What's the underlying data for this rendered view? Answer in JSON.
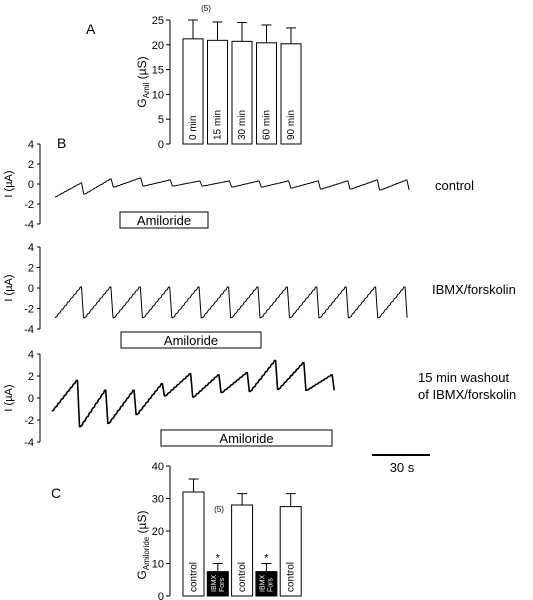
{
  "panel_labels": {
    "a": "A",
    "b": "B",
    "c": "C"
  },
  "chart_data": [
    {
      "type": "bar",
      "panel": "A",
      "ylabel": "G_Amil (µS)",
      "ylabel_main": "G",
      "ylabel_sub": "Amil",
      "ylabel_unit": " (µS)",
      "ylim": [
        0,
        25
      ],
      "yticks": [
        0,
        5,
        10,
        15,
        20,
        25
      ],
      "n_label": "(5)",
      "categories": [
        "0 min",
        "15 min",
        "30 min",
        "60 min",
        "90 min"
      ],
      "values": [
        21.2,
        20.9,
        20.7,
        20.4,
        20.2
      ],
      "errors": [
        3.8,
        3.7,
        3.8,
        3.6,
        3.2
      ],
      "fill": [
        "#ffffff",
        "#ffffff",
        "#ffffff",
        "#ffffff",
        "#ffffff"
      ]
    },
    {
      "type": "line",
      "panel": "B",
      "x_scalebar_label": "30 s",
      "traces": [
        {
          "label": "control",
          "ylabel": "I (µA)",
          "ylim": [
            -4,
            4
          ],
          "yticks": [
            -4,
            -2,
            0,
            2,
            4
          ],
          "bar_label": "Amiloride",
          "n_cycles": 12,
          "amplitude": [
            1.4,
            1.5,
            0.9,
            0.6,
            0.5,
            0.5,
            0.6,
            0.6,
            0.7,
            0.8,
            0.9,
            1.0
          ],
          "baseline": [
            -1.3,
            -1.0,
            -0.3,
            -0.2,
            -0.2,
            -0.2,
            -0.3,
            -0.3,
            -0.4,
            -0.5,
            -0.5,
            -0.6
          ]
        },
        {
          "label": "IBMX/forskolin",
          "ylabel": "I (µA)",
          "ylim": [
            -4,
            4
          ],
          "yticks": [
            -4,
            -2,
            0,
            2,
            4
          ],
          "bar_label": "Amiloride",
          "n_cycles": 12,
          "amplitude": [
            3.0,
            3.0,
            3.0,
            3.0,
            3.0,
            3.0,
            3.0,
            3.0,
            3.0,
            3.0,
            3.0,
            3.0
          ],
          "baseline": [
            -2.9,
            -2.9,
            -2.9,
            -2.9,
            -2.9,
            -2.9,
            -2.9,
            -2.9,
            -2.9,
            -2.9,
            -2.9,
            -2.9
          ]
        },
        {
          "label": "15 min washout of IBMX/forskolin",
          "label_line1": "15 min washout",
          "label_line2": "of IBMX/forskolin",
          "ylabel": "I (µA)",
          "ylim": [
            -4,
            4
          ],
          "yticks": [
            -4,
            -2,
            0,
            2,
            4
          ],
          "bar_label": "Amiloride",
          "n_cycles": 10,
          "amplitude": [
            2.8,
            3.3,
            3.0,
            2.8,
            2.0,
            2.0,
            1.8,
            2.8,
            2.4,
            1.4
          ],
          "baseline": [
            -1.2,
            -2.6,
            -2.3,
            -1.5,
            0.2,
            0.1,
            0.5,
            0.6,
            0.8,
            0.7
          ]
        }
      ]
    },
    {
      "type": "bar",
      "panel": "C",
      "ylabel": "G_Amiloride (µS)",
      "ylabel_main": "G",
      "ylabel_sub": "Amiloride",
      "ylabel_unit": " (µS)",
      "ylim": [
        0,
        40
      ],
      "yticks": [
        0,
        10,
        20,
        30,
        40
      ],
      "n_label": "(5)",
      "categories": [
        "control",
        "IBMX\nFors",
        "control",
        "IBMX\nFors",
        "control"
      ],
      "values": [
        32.0,
        7.5,
        28.0,
        7.5,
        27.5
      ],
      "errors": [
        4.0,
        2.5,
        3.5,
        2.5,
        4.0
      ],
      "fill": [
        "#ffffff",
        "#000000",
        "#ffffff",
        "#000000",
        "#ffffff"
      ],
      "significance": [
        "",
        "*",
        "",
        "*",
        ""
      ]
    }
  ]
}
